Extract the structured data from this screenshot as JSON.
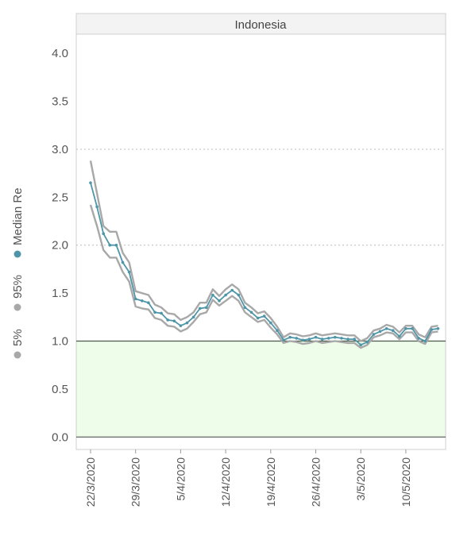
{
  "chart_data": {
    "type": "line",
    "panel_title": "Indonesia",
    "x": [
      "22/3/2020",
      "23/3/2020",
      "24/3/2020",
      "25/3/2020",
      "26/3/2020",
      "27/3/2020",
      "28/3/2020",
      "29/3/2020",
      "30/3/2020",
      "31/3/2020",
      "1/4/2020",
      "2/4/2020",
      "3/4/2020",
      "4/4/2020",
      "5/4/2020",
      "6/4/2020",
      "7/4/2020",
      "8/4/2020",
      "9/4/2020",
      "10/4/2020",
      "11/4/2020",
      "12/4/2020",
      "13/4/2020",
      "14/4/2020",
      "15/4/2020",
      "16/4/2020",
      "17/4/2020",
      "18/4/2020",
      "19/4/2020",
      "20/4/2020",
      "21/4/2020",
      "22/4/2020",
      "23/4/2020",
      "24/4/2020",
      "25/4/2020",
      "26/4/2020",
      "27/4/2020",
      "28/4/2020",
      "29/4/2020",
      "30/4/2020",
      "1/5/2020",
      "2/5/2020",
      "3/5/2020",
      "4/5/2020",
      "5/5/2020",
      "6/5/2020",
      "7/5/2020",
      "8/5/2020",
      "9/5/2020",
      "10/5/2020",
      "11/5/2020",
      "12/5/2020",
      "13/5/2020",
      "14/5/2020",
      "15/5/2020"
    ],
    "x_ticks": [
      "22/3/2020",
      "29/3/2020",
      "5/4/2020",
      "12/4/2020",
      "19/4/2020",
      "26/4/2020",
      "3/5/2020",
      "10/5/2020"
    ],
    "y_ticks": [
      "4.0",
      "3.5",
      "3.0",
      "2.5",
      "2.0",
      "1.5",
      "1.0",
      "0.5",
      "0.0"
    ],
    "ylim": [
      -0.13,
      4.2
    ],
    "series": [
      {
        "name": "5%",
        "color": "#a8a8a8",
        "values": [
          2.42,
          2.2,
          1.95,
          1.87,
          1.87,
          1.72,
          1.62,
          1.36,
          1.34,
          1.33,
          1.24,
          1.22,
          1.16,
          1.15,
          1.1,
          1.13,
          1.2,
          1.28,
          1.3,
          1.43,
          1.37,
          1.42,
          1.47,
          1.42,
          1.3,
          1.25,
          1.2,
          1.22,
          1.14,
          1.07,
          0.98,
          1.0,
          0.99,
          0.97,
          0.98,
          1.0,
          0.98,
          0.99,
          1.0,
          0.99,
          0.98,
          0.98,
          0.93,
          0.96,
          1.04,
          1.06,
          1.09,
          1.08,
          1.02,
          1.09,
          1.09,
          1.0,
          0.97,
          1.09,
          1.1
        ]
      },
      {
        "name": "95%",
        "color": "#a8a8a8",
        "values": [
          2.88,
          2.54,
          2.2,
          2.14,
          2.14,
          1.92,
          1.82,
          1.52,
          1.5,
          1.48,
          1.38,
          1.35,
          1.29,
          1.28,
          1.22,
          1.25,
          1.3,
          1.4,
          1.4,
          1.54,
          1.47,
          1.54,
          1.59,
          1.54,
          1.4,
          1.35,
          1.29,
          1.31,
          1.24,
          1.15,
          1.04,
          1.08,
          1.07,
          1.05,
          1.06,
          1.08,
          1.06,
          1.07,
          1.08,
          1.07,
          1.06,
          1.06,
          1.0,
          1.03,
          1.11,
          1.13,
          1.17,
          1.15,
          1.09,
          1.16,
          1.16,
          1.07,
          1.04,
          1.15,
          1.16
        ]
      },
      {
        "name": "Median Re",
        "color": "#4f95a8",
        "values": [
          2.65,
          2.4,
          2.12,
          2.0,
          2.0,
          1.82,
          1.72,
          1.44,
          1.42,
          1.4,
          1.3,
          1.29,
          1.22,
          1.21,
          1.16,
          1.19,
          1.25,
          1.34,
          1.35,
          1.48,
          1.42,
          1.48,
          1.53,
          1.48,
          1.35,
          1.3,
          1.24,
          1.26,
          1.19,
          1.11,
          1.01,
          1.04,
          1.03,
          1.01,
          1.02,
          1.04,
          1.02,
          1.03,
          1.04,
          1.03,
          1.02,
          1.02,
          0.96,
          0.99,
          1.07,
          1.1,
          1.13,
          1.11,
          1.05,
          1.13,
          1.13,
          1.03,
          1.0,
          1.12,
          1.13
        ]
      }
    ],
    "threshold": 1.0,
    "shaded_band": [
      0.0,
      1.0
    ],
    "dotted_gridlines": [
      2.0,
      3.0
    ],
    "legend": [
      "5%",
      "95%",
      "Median Re"
    ],
    "legend_placement": "left, vertical",
    "colors": {
      "band_fill": "#eefcea",
      "threshold_line": "#4a5a4a",
      "zero_line": "#555555",
      "grid_dotted": "#bbbbbb",
      "panel_header": "#f3f3f3",
      "ci_marker": "#a8a8a8",
      "median_marker": "#4f95a8"
    }
  }
}
